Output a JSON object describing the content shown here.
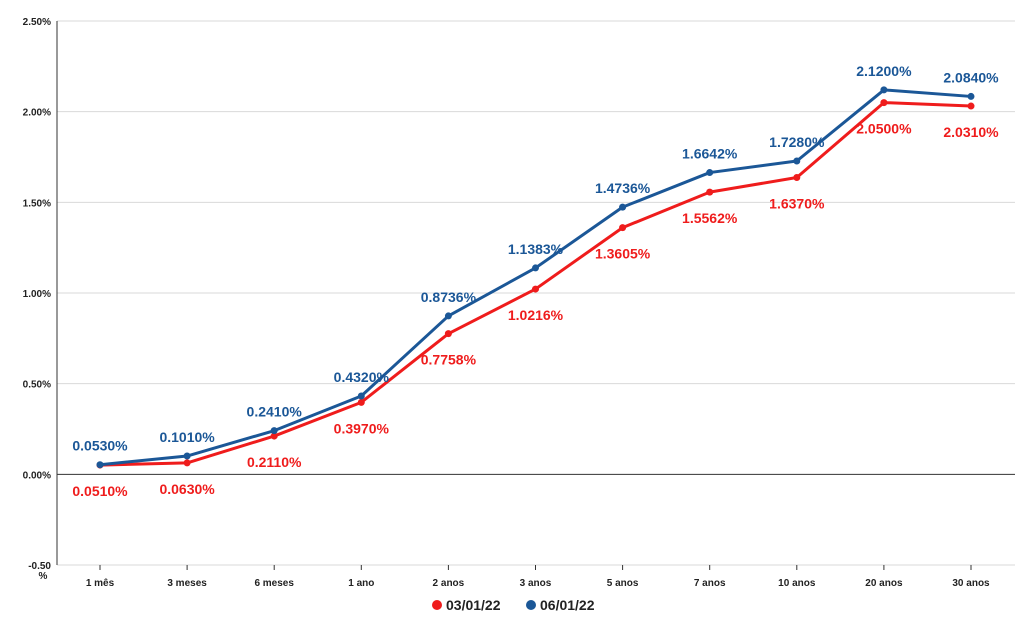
{
  "chart_data": {
    "type": "line",
    "categories": [
      "1 mês",
      "3 meses",
      "6 meses",
      "1 ano",
      "2 anos",
      "3 anos",
      "5 anos",
      "7 anos",
      "10 anos",
      "20 anos",
      "30 anos"
    ],
    "series": [
      {
        "name": "03/01/22",
        "color": "#ef1c1c",
        "values": [
          0.051,
          0.063,
          0.211,
          0.397,
          0.7758,
          1.0216,
          1.3605,
          1.5562,
          1.637,
          2.05,
          2.031
        ],
        "labels": [
          "0.0510%",
          "0.0630%",
          "0.2110%",
          "0.3970%",
          "0.7758%",
          "1.0216%",
          "1.3605%",
          "1.5562%",
          "1.6370%",
          "2.0500%",
          "2.0310%"
        ]
      },
      {
        "name": "06/01/22",
        "color": "#1b5797",
        "values": [
          0.053,
          0.101,
          0.241,
          0.432,
          0.8736,
          1.1383,
          1.4736,
          1.6642,
          1.728,
          2.12,
          2.084
        ],
        "labels": [
          "0.0530%",
          "0.1010%",
          "0.2410%",
          "0.4320%",
          "0.8736%",
          "1.1383%",
          "1.4736%",
          "1.6642%",
          "1.7280%",
          "2.1200%",
          "2.0840%"
        ]
      }
    ],
    "ylim": [
      -0.5,
      2.5
    ],
    "yticks": [
      2.5,
      2.0,
      1.5,
      1.0,
      0.5,
      0.0,
      -0.5
    ],
    "ytick_labels": [
      "2.50%",
      "2.00%",
      "1.50%",
      "1.00%",
      "0.50%",
      "0.00%",
      "-0.50"
    ],
    "ytick_extra": "%",
    "grid": "horizontal",
    "legend": "bottom-center",
    "title": "",
    "xlabel": "",
    "ylabel": ""
  }
}
